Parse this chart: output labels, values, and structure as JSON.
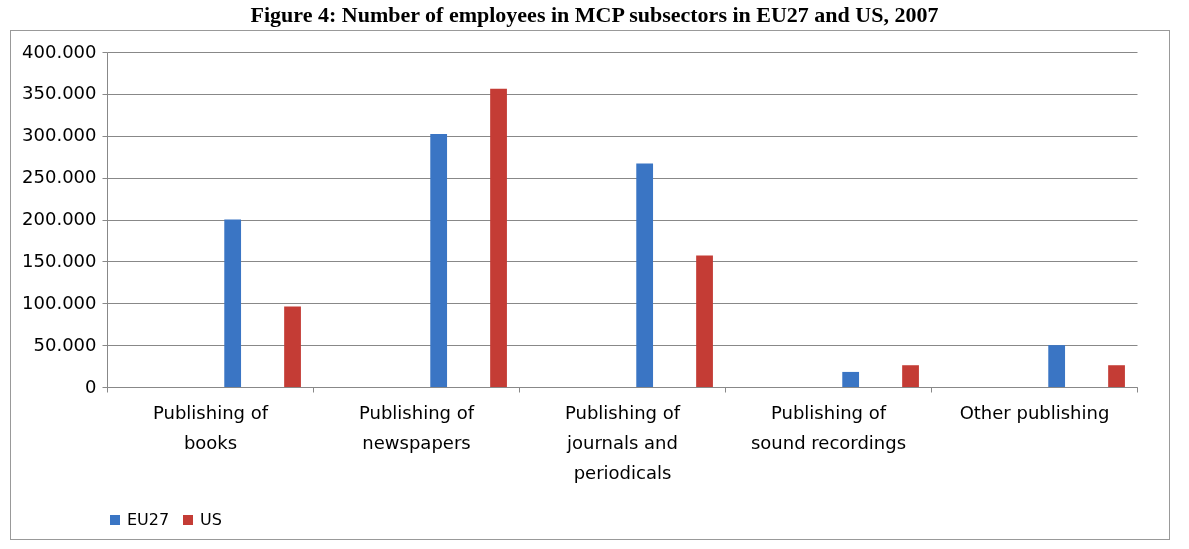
{
  "chart_data": {
    "type": "bar",
    "title": "Figure 4: Number of employees in MCP subsectors in EU27 and US, 2007",
    "categories": [
      "Publishing of books",
      "Publishing of newspapers",
      "Publishing of journals and periodicals",
      "Publishing of sound recordings",
      "Other publishing"
    ],
    "series": [
      {
        "name": "EU27",
        "color": "#3a75c4",
        "values": [
          200000,
          302000,
          267000,
          18000,
          50000
        ]
      },
      {
        "name": "US",
        "color": "#c43c35",
        "values": [
          96000,
          356000,
          157000,
          26000,
          26000
        ]
      }
    ],
    "ylim": [
      0,
      400000
    ],
    "yticks": [
      {
        "value": 0,
        "label": "0"
      },
      {
        "value": 50000,
        "label": "50.000"
      },
      {
        "value": 100000,
        "label": "100.000"
      },
      {
        "value": 150000,
        "label": "150.000"
      },
      {
        "value": 200000,
        "label": "200.000"
      },
      {
        "value": 250000,
        "label": "250.000"
      },
      {
        "value": 300000,
        "label": "300.000"
      },
      {
        "value": 350000,
        "label": "350.000"
      },
      {
        "value": 400000,
        "label": "400.000"
      }
    ],
    "grid": "y",
    "legend": "bottom"
  }
}
